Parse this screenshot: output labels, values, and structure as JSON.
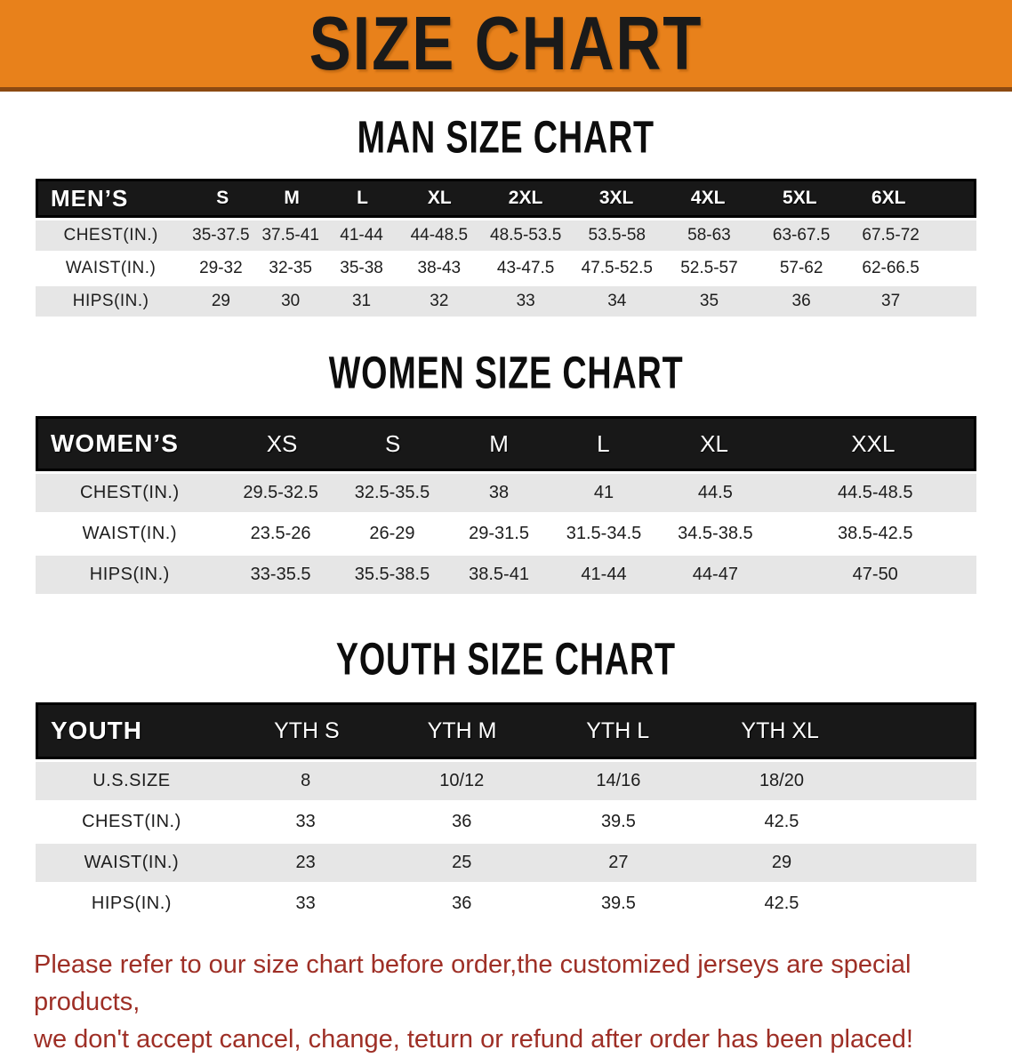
{
  "banner": {
    "title": "SIZE CHART"
  },
  "colors": {
    "banner_bg": "#e8811b",
    "banner_border": "#8c4a12",
    "banner_text": "#1a1a1a",
    "table_header_bg": "#181818",
    "table_header_text": "#ffffff",
    "row_alt_bg": "#e6e6e6",
    "row_bg": "#ffffff",
    "body_text": "#1d1d1d",
    "footer_text": "#9e2f26"
  },
  "sections": [
    {
      "title": "MAN SIZE CHART",
      "table": {
        "header_label": "MEN’S",
        "columns": [
          "S",
          "M",
          "L",
          "XL",
          "2XL",
          "3XL",
          "4XL",
          "5XL",
          "6XL"
        ],
        "rows": [
          {
            "label": "CHEST(IN.)",
            "values": [
              "35-37.5",
              "37.5-41",
              "41-44",
              "44-48.5",
              "48.5-53.5",
              "53.5-58",
              "58-63",
              "63-67.5",
              "67.5-72"
            ]
          },
          {
            "label": "WAIST(IN.)",
            "values": [
              "29-32",
              "32-35",
              "35-38",
              "38-43",
              "43-47.5",
              "47.5-52.5",
              "52.5-57",
              "57-62",
              "62-66.5"
            ]
          },
          {
            "label": "HIPS(IN.)",
            "values": [
              "29",
              "30",
              "31",
              "32",
              "33",
              "34",
              "35",
              "36",
              "37"
            ]
          }
        ]
      }
    },
    {
      "title": "WOMEN SIZE CHART",
      "table": {
        "header_label": "WOMEN’S",
        "columns": [
          "XS",
          "S",
          "M",
          "L",
          "XL",
          "XXL"
        ],
        "rows": [
          {
            "label": "CHEST(IN.)",
            "values": [
              "29.5-32.5",
              "32.5-35.5",
              "38",
              "41",
              "44.5",
              "44.5-48.5"
            ]
          },
          {
            "label": "WAIST(IN.)",
            "values": [
              "23.5-26",
              "26-29",
              "29-31.5",
              "31.5-34.5",
              "34.5-38.5",
              "38.5-42.5"
            ]
          },
          {
            "label": "HIPS(IN.)",
            "values": [
              "33-35.5",
              "35.5-38.5",
              "38.5-41",
              "41-44",
              "44-47",
              "47-50"
            ]
          }
        ]
      }
    },
    {
      "title": "YOUTH SIZE CHART",
      "table": {
        "header_label": "YOUTH",
        "columns": [
          "YTH S",
          "YTH M",
          "YTH L",
          "YTH XL"
        ],
        "rows": [
          {
            "label": "U.S.SIZE",
            "values": [
              "8",
              "10/12",
              "14/16",
              "18/20"
            ]
          },
          {
            "label": "CHEST(IN.)",
            "values": [
              "33",
              "36",
              "39.5",
              "42.5"
            ]
          },
          {
            "label": "WAIST(IN.)",
            "values": [
              "23",
              "25",
              "27",
              "29"
            ]
          },
          {
            "label": "HIPS(IN.)",
            "values": [
              "33",
              "36",
              "39.5",
              "42.5"
            ]
          }
        ]
      }
    }
  ],
  "footer": {
    "line1": "Please refer to our size chart before order,the customized jerseys are special products,",
    "line2": "we don't accept cancel, change, teturn or refund after order has been placed!"
  }
}
